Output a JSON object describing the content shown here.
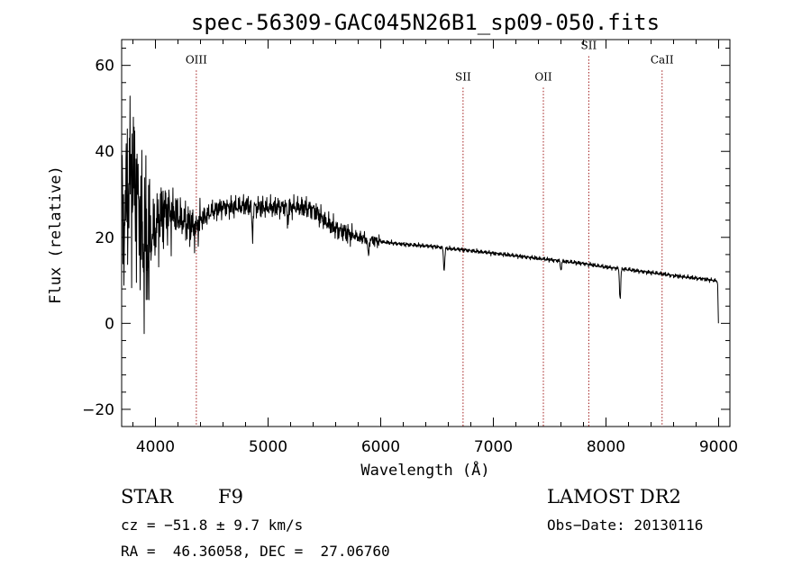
{
  "chart_data": {
    "type": "line",
    "title": "spec-56309-GAC045N26B1_sp09-050.fits",
    "xlabel": "Wavelength (Å)",
    "ylabel": "Flux (relative)",
    "xlim": [
      3700,
      9100
    ],
    "ylim": [
      -24,
      66
    ],
    "xticks": [
      4000,
      5000,
      6000,
      7000,
      8000,
      9000
    ],
    "yticks": [
      -20,
      0,
      20,
      40,
      60
    ],
    "xtick_labels": [
      "4000",
      "5000",
      "6000",
      "7000",
      "8000",
      "9000"
    ],
    "ytick_labels": [
      "−20",
      "0",
      "20",
      "40",
      "60"
    ],
    "spectral_lines": [
      {
        "name": "OIII",
        "wavelength": 4363,
        "label_flux": 60.5
      },
      {
        "name": "SII",
        "wavelength": 6731,
        "label_flux": 56.5
      },
      {
        "name": "OII",
        "wavelength": 7444,
        "label_flux": 56.5
      },
      {
        "name": "SII",
        "wavelength": 7847,
        "label_flux": 63.8
      },
      {
        "name": "CaII",
        "wavelength": 8498,
        "label_flux": 60.5
      }
    ],
    "series": [
      {
        "name": "spectrum",
        "color": "#000000",
        "x": [
          3700,
          3740,
          3780,
          3820,
          3860,
          3900,
          3950,
          4000,
          4050,
          4100,
          4200,
          4300,
          4363,
          4400,
          4500,
          4600,
          4700,
          4800,
          4861,
          4900,
          5000,
          5100,
          5200,
          5300,
          5400,
          5500,
          5600,
          5700,
          5800,
          5900,
          6000,
          6100,
          6200,
          6300,
          6400,
          6500,
          6563,
          6600,
          6700,
          6800,
          6900,
          7000,
          7100,
          7200,
          7300,
          7400,
          7500,
          7600,
          7700,
          7800,
          7900,
          8000,
          8100,
          8200,
          8300,
          8400,
          8500,
          8600,
          8700,
          8800,
          8900,
          8990,
          9000
        ],
        "y": [
          20,
          28,
          35,
          32,
          24,
          18,
          19,
          22,
          25,
          26,
          25,
          23,
          22,
          24,
          26,
          27,
          27,
          27.5,
          27,
          27,
          27,
          27,
          27,
          27,
          26.5,
          24,
          22,
          21,
          20,
          19.5,
          19,
          18.7,
          18.4,
          18.2,
          18,
          17.8,
          17.5,
          17.4,
          17.2,
          16.9,
          16.6,
          16.3,
          16,
          15.7,
          15.4,
          15.1,
          14.8,
          14.5,
          14.2,
          13.9,
          13.5,
          13.1,
          12.8,
          12.5,
          12.1,
          11.8,
          11.5,
          11.1,
          10.8,
          10.5,
          10.2,
          9.8,
          0
        ]
      }
    ]
  },
  "info": {
    "object_class": "STAR",
    "subclass": "F9",
    "survey": "LAMOST DR2",
    "cz": "cz = −51.8 ± 9.7 km/s",
    "obs_date": "Obs−Date: 20130116",
    "coords": "RA =  46.36058, DEC =  27.06760"
  }
}
